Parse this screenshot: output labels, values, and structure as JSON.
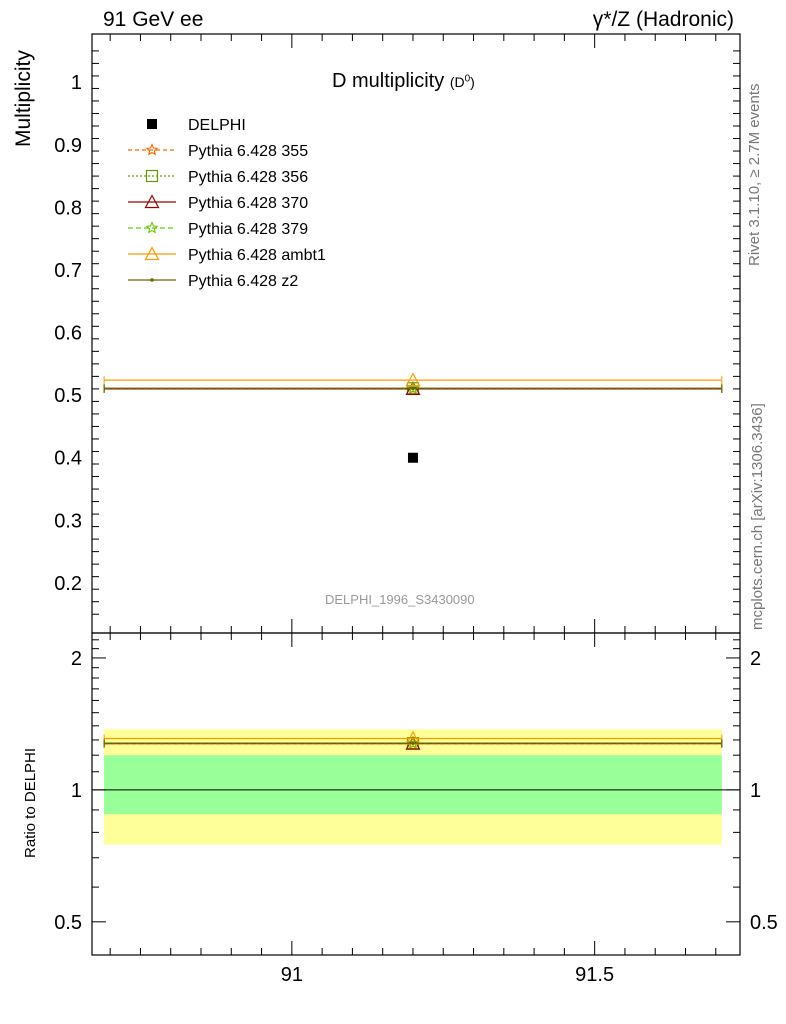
{
  "header": {
    "left": "91 GeV ee",
    "right": "γ*/Z (Hadronic)"
  },
  "side_text": {
    "upper": "Rivet 3.1.10, ≥ 2.7M events",
    "lower": "mcplots.cern.ch [arXiv:1306.3436]"
  },
  "chart_data": {
    "type": "scatter",
    "title": "D multiplicity",
    "title_sup": "(D",
    "title_sup_num": "0",
    "title_sup_close": ")",
    "watermark": "DELPHI_1996_S3430090",
    "xlim": [
      90.67,
      91.74
    ],
    "x_bin": [
      90.69,
      91.71
    ],
    "x_center": 91.2,
    "x_ticks": [
      "91",
      "91.5"
    ],
    "main": {
      "ylabel": "Multiplicity",
      "ylim": [
        0.12,
        1.077
      ],
      "y_ticks": [
        "0.2",
        "0.3",
        "0.4",
        "0.5",
        "0.6",
        "0.7",
        "0.8",
        "0.9",
        "1"
      ]
    },
    "ratio": {
      "ylabel": "Ratio to DELPHI",
      "ylim": [
        0.42,
        2.28
      ],
      "y_ticks": [
        "0.5",
        "1",
        "2"
      ],
      "band_inner": [
        0.88,
        1.2
      ],
      "band_outer": [
        0.75,
        1.375
      ]
    },
    "legend_position": "top-left",
    "series": [
      {
        "name": "DELPHI",
        "value": 0.4,
        "ratio": 1.0,
        "color": "#000000",
        "marker": "square",
        "dash": ""
      },
      {
        "name": "Pythia 6.428 355",
        "value": 0.51,
        "ratio": 1.275,
        "color": "#ff6600",
        "marker": "star",
        "dash": "4,3"
      },
      {
        "name": "Pythia 6.428 356",
        "value": 0.511,
        "ratio": 1.278,
        "color": "#669900",
        "marker": "open-square",
        "dash": "2,2"
      },
      {
        "name": "Pythia 6.428 370",
        "value": 0.51,
        "ratio": 1.275,
        "color": "#990000",
        "marker": "open-triangle",
        "dash": ""
      },
      {
        "name": "Pythia 6.428 379",
        "value": 0.511,
        "ratio": 1.278,
        "color": "#66cc00",
        "marker": "star",
        "dash": "5,3"
      },
      {
        "name": "Pythia 6.428 ambt1",
        "value": 0.524,
        "ratio": 1.31,
        "color": "#ff9900",
        "marker": "open-triangle",
        "dash": ""
      },
      {
        "name": "Pythia 6.428 z2",
        "value": 0.511,
        "ratio": 1.278,
        "color": "#666600",
        "marker": "dot",
        "dash": ""
      }
    ]
  }
}
